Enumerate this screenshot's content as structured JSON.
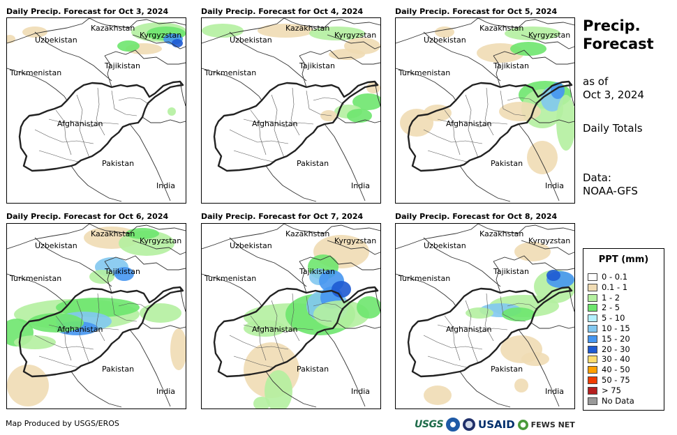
{
  "panels": [
    {
      "title": "Daily Precip. Forecast for Oct 3, 2024"
    },
    {
      "title": "Daily Precip. Forecast for Oct 4, 2024"
    },
    {
      "title": "Daily Precip. Forecast for Oct 5, 2024"
    },
    {
      "title": "Daily Precip. Forecast for Oct 6, 2024"
    },
    {
      "title": "Daily Precip. Forecast for Oct 7, 2024"
    },
    {
      "title": "Daily Precip. Forecast for Oct 8, 2024"
    }
  ],
  "map_labels": {
    "kazakhstan": "Kazakhstan",
    "kyrgyzstan": "Kyrgyzstan",
    "uzbekistan": "Uzbekistan",
    "tajikistan": "Tajikistan",
    "turkmenistan": "Turkmenistan",
    "afghanistan": "Afghanistan",
    "pakistan": "Pakistan",
    "india": "India"
  },
  "side": {
    "title_line1": "Precip.",
    "title_line2": "Forecast",
    "asof_line1": "as of",
    "asof_line2": "Oct 3, 2024",
    "totals": "Daily Totals",
    "data_line1": "Data:",
    "data_line2": "NOAA-GFS"
  },
  "legend": {
    "title": "PPT (mm)",
    "items": [
      {
        "label": "0 - 0.1",
        "color": "#ffffff"
      },
      {
        "label": "0.1 - 1",
        "color": "#f0dcb4"
      },
      {
        "label": "1 - 2",
        "color": "#b4f0a0"
      },
      {
        "label": "2 - 5",
        "color": "#6ee66e"
      },
      {
        "label": "5 - 10",
        "color": "#b4f0ff"
      },
      {
        "label": "10 - 15",
        "color": "#82c8f0"
      },
      {
        "label": "15 - 20",
        "color": "#4696f0"
      },
      {
        "label": "20 - 30",
        "color": "#1e5ad2"
      },
      {
        "label": "30 - 40",
        "color": "#ffdc6e"
      },
      {
        "label": "40 - 50",
        "color": "#ffa000"
      },
      {
        "label": "50 - 75",
        "color": "#f03c00"
      },
      {
        "label": "> 75",
        "color": "#b41e1e"
      },
      {
        "label": "No Data",
        "color": "#999999"
      }
    ]
  },
  "footer": {
    "credit": "Map Produced by USGS/EROS"
  },
  "logos": {
    "usgs": "USGS",
    "usaid": "USAID",
    "fews": "FEWS NET"
  }
}
